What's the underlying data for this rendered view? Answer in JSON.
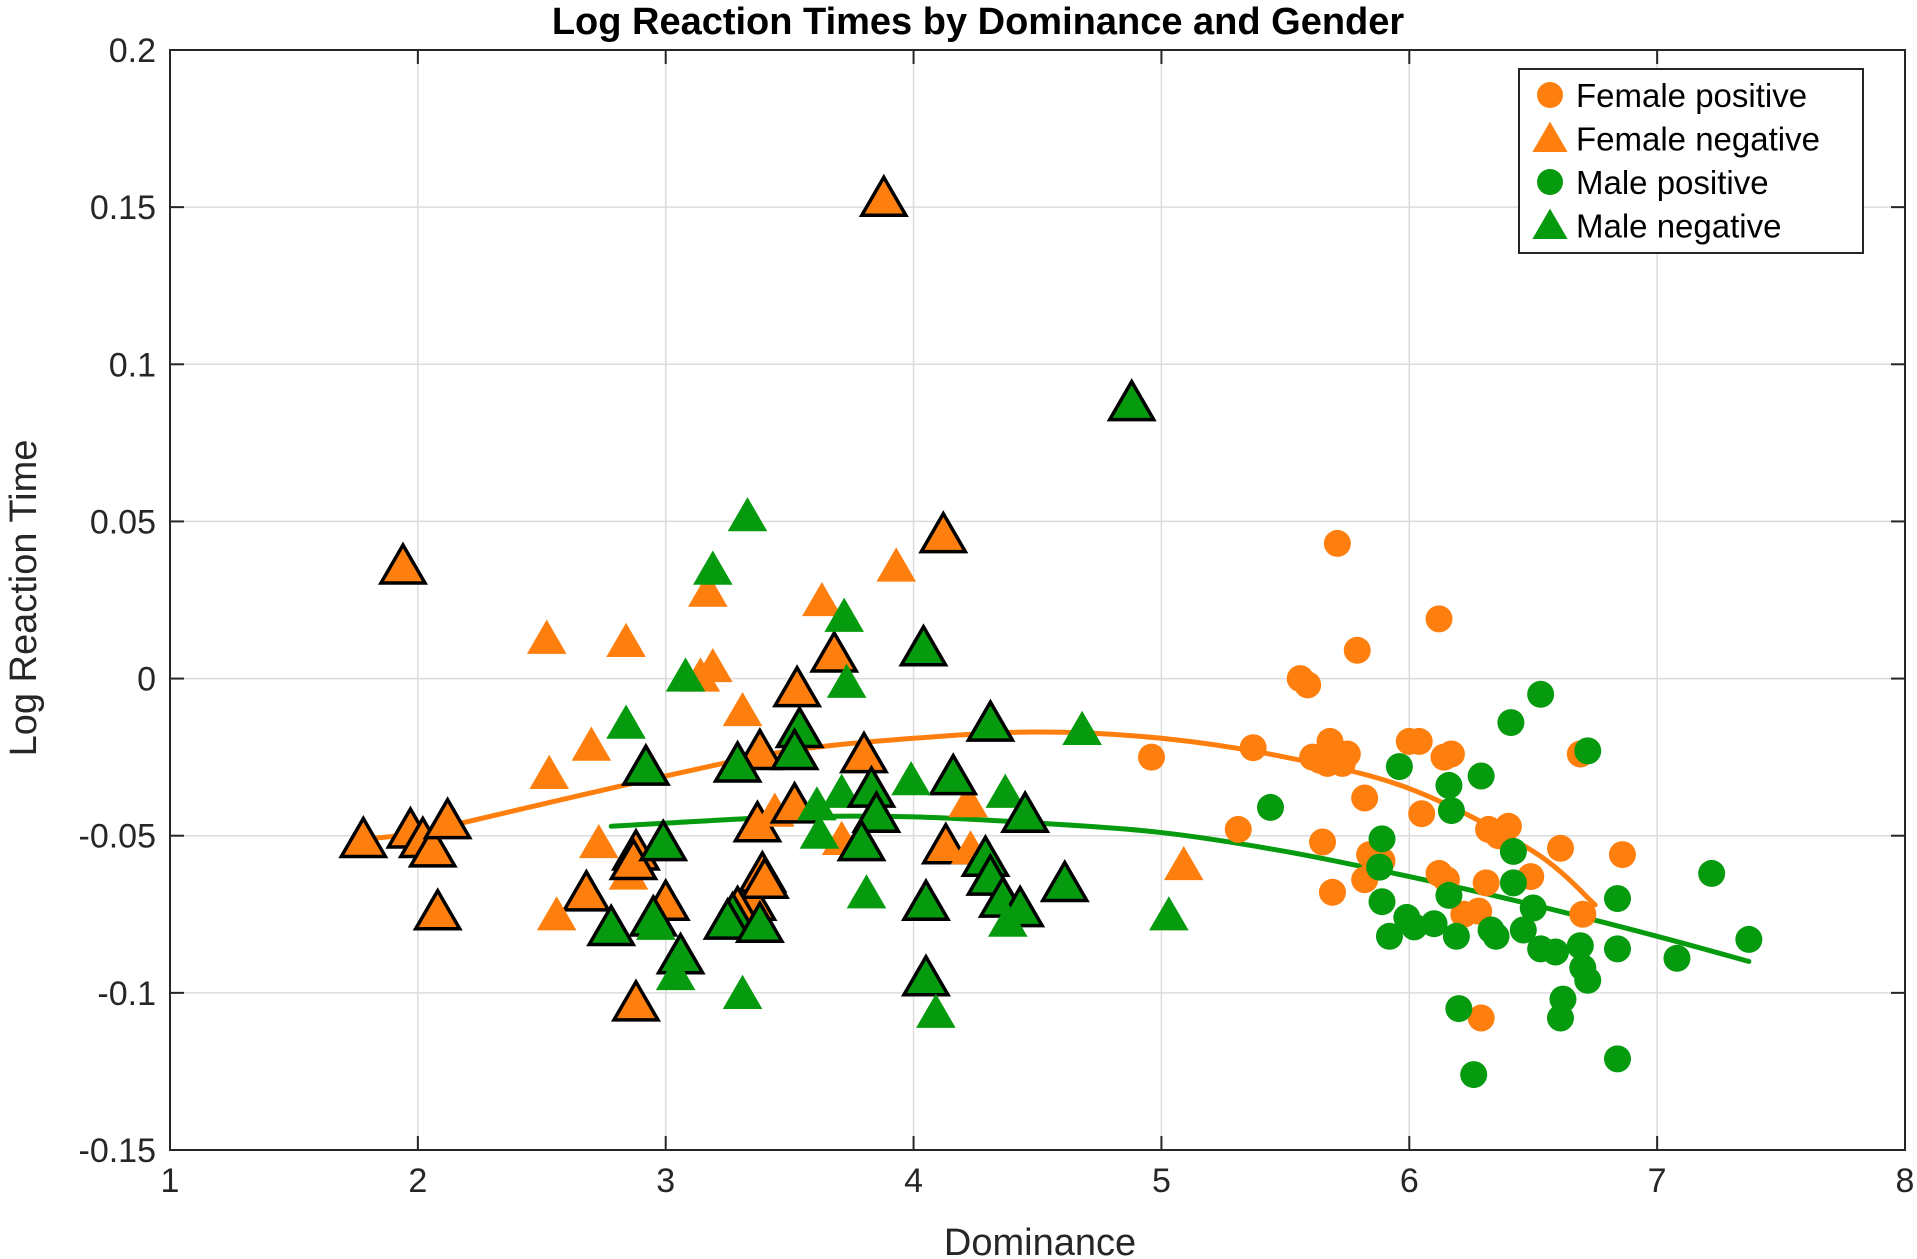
{
  "chart_data": {
    "type": "scatter",
    "title": "Log Reaction Times by Dominance and Gender",
    "xlabel": "Dominance",
    "ylabel": "Log Reaction Time",
    "xlim": [
      1,
      8
    ],
    "ylim": [
      -0.15,
      0.2
    ],
    "x_ticks": [
      1,
      2,
      3,
      4,
      5,
      6,
      7,
      8
    ],
    "x_tick_labels": [
      "1",
      "2",
      "3",
      "4",
      "5",
      "6",
      "7",
      "8"
    ],
    "y_ticks": [
      -0.15,
      -0.1,
      -0.05,
      0,
      0.05,
      0.1,
      0.15,
      0.2
    ],
    "y_tick_labels": [
      "-0.15",
      "-0.1",
      "-0.05",
      "0",
      "0.05",
      "0.1",
      "0.15",
      "0.2"
    ],
    "grid": true,
    "legend_position": "top-right",
    "colors": {
      "female": "#ff7f0e",
      "male": "#069a0e",
      "outline": "#000000"
    },
    "series": [
      {
        "name": "Female positive",
        "marker": "circle",
        "color": "#ff7f0e",
        "points": [
          [
            5.71,
            0.043
          ],
          [
            6.12,
            0.019
          ],
          [
            5.79,
            0.009
          ],
          [
            5.56,
            0.0
          ],
          [
            5.59,
            -0.002
          ],
          [
            5.37,
            -0.022
          ],
          [
            5.68,
            -0.02
          ],
          [
            5.61,
            -0.025
          ],
          [
            5.64,
            -0.026
          ],
          [
            5.67,
            -0.027
          ],
          [
            5.73,
            -0.027
          ],
          [
            5.75,
            -0.024
          ],
          [
            4.96,
            -0.025
          ],
          [
            6.0,
            -0.02
          ],
          [
            6.04,
            -0.02
          ],
          [
            6.17,
            -0.024
          ],
          [
            6.14,
            -0.025
          ],
          [
            6.69,
            -0.024
          ],
          [
            5.82,
            -0.038
          ],
          [
            6.05,
            -0.043
          ],
          [
            6.32,
            -0.048
          ],
          [
            6.36,
            -0.05
          ],
          [
            6.4,
            -0.047
          ],
          [
            5.31,
            -0.048
          ],
          [
            5.65,
            -0.052
          ],
          [
            5.84,
            -0.056
          ],
          [
            5.89,
            -0.058
          ],
          [
            6.61,
            -0.054
          ],
          [
            6.86,
            -0.056
          ],
          [
            5.82,
            -0.064
          ],
          [
            6.12,
            -0.062
          ],
          [
            6.15,
            -0.064
          ],
          [
            6.31,
            -0.065
          ],
          [
            6.49,
            -0.063
          ],
          [
            5.69,
            -0.068
          ],
          [
            6.28,
            -0.074
          ],
          [
            6.7,
            -0.075
          ],
          [
            6.22,
            -0.075
          ],
          [
            6.29,
            -0.108
          ]
        ]
      },
      {
        "name": "Female negative",
        "marker": "triangle",
        "color": "#ff7f0e",
        "points": [
          [
            3.88,
            0.152
          ],
          [
            1.94,
            0.035
          ],
          [
            4.12,
            0.045
          ],
          [
            3.93,
            0.035
          ],
          [
            2.52,
            0.012
          ],
          [
            2.84,
            0.011
          ],
          [
            3.17,
            0.027
          ],
          [
            3.63,
            0.024
          ],
          [
            3.19,
            0.003
          ],
          [
            3.14,
            0.0
          ],
          [
            3.53,
            -0.004
          ],
          [
            3.68,
            0.007
          ],
          [
            3.31,
            -0.011
          ],
          [
            2.7,
            -0.022
          ],
          [
            2.53,
            -0.031
          ],
          [
            3.38,
            -0.024
          ],
          [
            3.8,
            -0.025
          ],
          [
            4.22,
            -0.04
          ],
          [
            1.78,
            -0.052
          ],
          [
            1.97,
            -0.049
          ],
          [
            2.02,
            -0.052
          ],
          [
            2.06,
            -0.055
          ],
          [
            2.12,
            -0.046
          ],
          [
            2.73,
            -0.053
          ],
          [
            2.88,
            -0.056
          ],
          [
            3.37,
            -0.047
          ],
          [
            3.44,
            -0.043
          ],
          [
            3.52,
            -0.041
          ],
          [
            3.71,
            -0.052
          ],
          [
            4.13,
            -0.054
          ],
          [
            4.23,
            -0.055
          ],
          [
            5.09,
            -0.06
          ],
          [
            2.68,
            -0.069
          ],
          [
            2.85,
            -0.063
          ],
          [
            2.87,
            -0.059
          ],
          [
            3.0,
            -0.072
          ],
          [
            3.35,
            -0.072
          ],
          [
            3.39,
            -0.063
          ],
          [
            3.4,
            -0.065
          ],
          [
            2.08,
            -0.075
          ],
          [
            2.56,
            -0.076
          ],
          [
            3.29,
            -0.074
          ],
          [
            2.88,
            -0.104
          ]
        ]
      },
      {
        "name": "Male positive",
        "marker": "circle",
        "color": "#069a0e",
        "points": [
          [
            6.53,
            -0.005
          ],
          [
            6.72,
            -0.023
          ],
          [
            6.41,
            -0.014
          ],
          [
            5.96,
            -0.028
          ],
          [
            6.16,
            -0.034
          ],
          [
            6.29,
            -0.031
          ],
          [
            5.44,
            -0.041
          ],
          [
            6.17,
            -0.042
          ],
          [
            5.89,
            -0.051
          ],
          [
            6.42,
            -0.055
          ],
          [
            5.88,
            -0.06
          ],
          [
            6.42,
            -0.065
          ],
          [
            6.16,
            -0.069
          ],
          [
            5.89,
            -0.071
          ],
          [
            6.5,
            -0.073
          ],
          [
            6.84,
            -0.07
          ],
          [
            7.22,
            -0.062
          ],
          [
            5.99,
            -0.076
          ],
          [
            6.02,
            -0.079
          ],
          [
            6.1,
            -0.078
          ],
          [
            6.19,
            -0.082
          ],
          [
            6.33,
            -0.08
          ],
          [
            6.35,
            -0.082
          ],
          [
            6.46,
            -0.08
          ],
          [
            5.92,
            -0.082
          ],
          [
            6.53,
            -0.086
          ],
          [
            6.59,
            -0.087
          ],
          [
            6.69,
            -0.085
          ],
          [
            6.84,
            -0.086
          ],
          [
            6.7,
            -0.092
          ],
          [
            6.72,
            -0.096
          ],
          [
            7.08,
            -0.089
          ],
          [
            7.37,
            -0.083
          ],
          [
            6.62,
            -0.102
          ],
          [
            6.61,
            -0.108
          ],
          [
            6.2,
            -0.105
          ],
          [
            6.84,
            -0.121
          ],
          [
            6.26,
            -0.126
          ]
        ]
      },
      {
        "name": "Male negative",
        "marker": "triangle",
        "color": "#069a0e",
        "points": [
          [
            4.88,
            0.087
          ],
          [
            3.33,
            0.051
          ],
          [
            3.19,
            0.034
          ],
          [
            3.72,
            0.019
          ],
          [
            4.04,
            0.009
          ],
          [
            3.08,
            0.0
          ],
          [
            3.73,
            -0.002
          ],
          [
            2.84,
            -0.015
          ],
          [
            3.54,
            -0.017
          ],
          [
            4.31,
            -0.015
          ],
          [
            4.68,
            -0.017
          ],
          [
            3.29,
            -0.028
          ],
          [
            3.52,
            -0.024
          ],
          [
            2.92,
            -0.029
          ],
          [
            4.16,
            -0.032
          ],
          [
            3.99,
            -0.033
          ],
          [
            4.37,
            -0.037
          ],
          [
            3.71,
            -0.037
          ],
          [
            3.83,
            -0.036
          ],
          [
            3.61,
            -0.041
          ],
          [
            4.45,
            -0.044
          ],
          [
            3.85,
            -0.044
          ],
          [
            2.99,
            -0.053
          ],
          [
            3.62,
            -0.05
          ],
          [
            3.79,
            -0.053
          ],
          [
            4.29,
            -0.058
          ],
          [
            4.31,
            -0.064
          ],
          [
            4.36,
            -0.071
          ],
          [
            4.43,
            -0.074
          ],
          [
            4.61,
            -0.066
          ],
          [
            3.81,
            -0.069
          ],
          [
            4.05,
            -0.072
          ],
          [
            5.03,
            -0.076
          ],
          [
            2.95,
            -0.077
          ],
          [
            2.96,
            -0.079
          ],
          [
            2.78,
            -0.08
          ],
          [
            3.27,
            -0.076
          ],
          [
            3.25,
            -0.078
          ],
          [
            3.38,
            -0.079
          ],
          [
            4.38,
            -0.078
          ],
          [
            3.06,
            -0.089
          ],
          [
            3.04,
            -0.095
          ],
          [
            4.05,
            -0.096
          ],
          [
            3.31,
            -0.101
          ],
          [
            4.09,
            -0.107
          ]
        ]
      }
    ],
    "outlined_points": [
      [
        3.88,
        0.152
      ],
      [
        1.94,
        0.035
      ],
      [
        4.12,
        0.045
      ],
      [
        3.53,
        -0.004
      ],
      [
        3.68,
        0.007
      ],
      [
        3.38,
        -0.024
      ],
      [
        3.8,
        -0.025
      ],
      [
        1.78,
        -0.052
      ],
      [
        1.97,
        -0.049
      ],
      [
        2.02,
        -0.052
      ],
      [
        2.06,
        -0.055
      ],
      [
        2.12,
        -0.046
      ],
      [
        2.88,
        -0.056
      ],
      [
        3.37,
        -0.047
      ],
      [
        3.52,
        -0.041
      ],
      [
        4.13,
        -0.054
      ],
      [
        2.68,
        -0.069
      ],
      [
        2.87,
        -0.059
      ],
      [
        3.0,
        -0.072
      ],
      [
        3.35,
        -0.072
      ],
      [
        3.39,
        -0.063
      ],
      [
        3.4,
        -0.065
      ],
      [
        2.08,
        -0.075
      ],
      [
        3.29,
        -0.074
      ],
      [
        2.88,
        -0.104
      ],
      [
        4.88,
        0.087
      ],
      [
        4.04,
        0.009
      ],
      [
        3.54,
        -0.017
      ],
      [
        4.31,
        -0.015
      ],
      [
        3.29,
        -0.028
      ],
      [
        3.52,
        -0.024
      ],
      [
        2.92,
        -0.029
      ],
      [
        4.16,
        -0.032
      ],
      [
        3.83,
        -0.036
      ],
      [
        4.45,
        -0.044
      ],
      [
        3.85,
        -0.044
      ],
      [
        2.99,
        -0.053
      ],
      [
        3.79,
        -0.053
      ],
      [
        4.29,
        -0.058
      ],
      [
        4.31,
        -0.064
      ],
      [
        4.36,
        -0.071
      ],
      [
        4.43,
        -0.074
      ],
      [
        4.61,
        -0.066
      ],
      [
        4.05,
        -0.072
      ],
      [
        2.95,
        -0.077
      ],
      [
        2.78,
        -0.08
      ],
      [
        3.27,
        -0.076
      ],
      [
        3.25,
        -0.078
      ],
      [
        3.38,
        -0.079
      ],
      [
        3.06,
        -0.089
      ],
      [
        4.05,
        -0.096
      ]
    ],
    "trend_lines": [
      {
        "group": "Female",
        "color": "#ff7f0e",
        "points": [
          [
            1.78,
            -0.051
          ],
          [
            2.0,
            -0.049
          ],
          [
            2.5,
            -0.04
          ],
          [
            3.0,
            -0.031
          ],
          [
            3.5,
            -0.023
          ],
          [
            4.0,
            -0.019
          ],
          [
            4.5,
            -0.017
          ],
          [
            5.0,
            -0.019
          ],
          [
            5.5,
            -0.025
          ],
          [
            6.0,
            -0.035
          ],
          [
            6.5,
            -0.055
          ],
          [
            6.75,
            -0.072
          ]
        ]
      },
      {
        "group": "Male",
        "color": "#069a0e",
        "points": [
          [
            2.78,
            -0.047
          ],
          [
            3.0,
            -0.046
          ],
          [
            3.5,
            -0.044
          ],
          [
            4.0,
            -0.044
          ],
          [
            4.5,
            -0.046
          ],
          [
            5.0,
            -0.049
          ],
          [
            5.5,
            -0.055
          ],
          [
            6.0,
            -0.063
          ],
          [
            6.5,
            -0.072
          ],
          [
            7.0,
            -0.082
          ],
          [
            7.37,
            -0.09
          ]
        ]
      }
    ]
  }
}
